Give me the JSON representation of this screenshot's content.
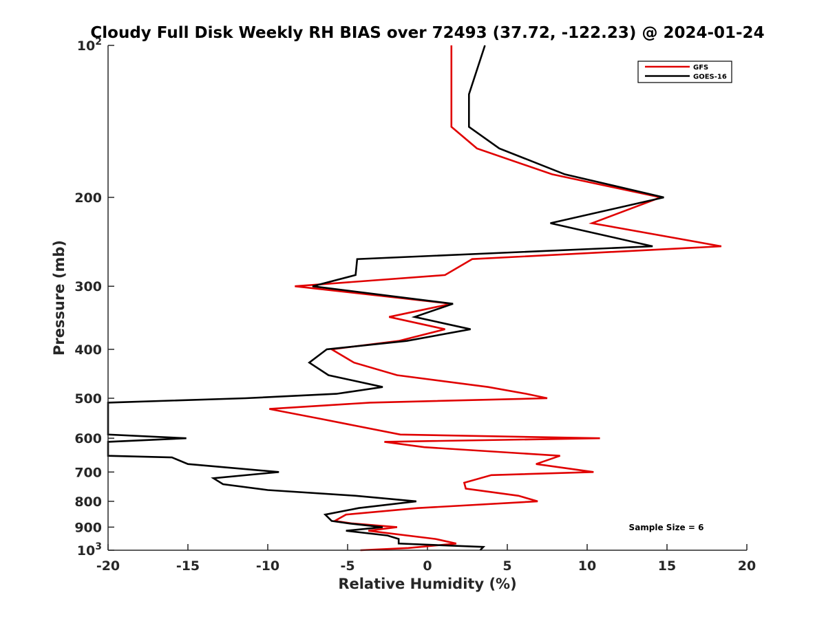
{
  "chart_data": {
    "type": "line",
    "title": "Cloudy Full Disk Weekly RH BIAS over 72493 (37.72, -122.23) @ 2024-01-24",
    "xlabel": "Relative Humidity (%)",
    "ylabel": "Pressure (mb)",
    "xlim": [
      -20,
      20
    ],
    "ylim": [
      100,
      1000
    ],
    "y_scale": "log",
    "y_reversed": true,
    "x_ticks": [
      -20,
      -15,
      -10,
      -5,
      0,
      5,
      10,
      15,
      20
    ],
    "x_tick_labels": [
      "-20",
      "-15",
      "-10",
      "-5",
      "0",
      "5",
      "10",
      "15",
      "20"
    ],
    "y_ticks": [
      100,
      200,
      300,
      400,
      500,
      600,
      700,
      800,
      900,
      1000
    ],
    "y_tick_labels": [
      {
        "base": "10",
        "exp": "2"
      },
      {
        "base": "200",
        "exp": ""
      },
      {
        "base": "300",
        "exp": ""
      },
      {
        "base": "400",
        "exp": ""
      },
      {
        "base": "500",
        "exp": ""
      },
      {
        "base": "600",
        "exp": ""
      },
      {
        "base": "700",
        "exp": ""
      },
      {
        "base": "800",
        "exp": ""
      },
      {
        "base": "900",
        "exp": ""
      },
      {
        "base": "10",
        "exp": "3"
      }
    ],
    "grid": false,
    "legend_position": "top-right",
    "annotation": "Sample Size = 6",
    "series": [
      {
        "name": "GFS",
        "color": "#e00000",
        "points": [
          {
            "x": 1.5,
            "y": 100
          },
          {
            "x": 1.5,
            "y": 125
          },
          {
            "x": 1.5,
            "y": 145
          },
          {
            "x": 3.1,
            "y": 160
          },
          {
            "x": 7.8,
            "y": 180
          },
          {
            "x": 14.6,
            "y": 200
          },
          {
            "x": 10.3,
            "y": 225
          },
          {
            "x": 18.4,
            "y": 250
          },
          {
            "x": 2.8,
            "y": 265
          },
          {
            "x": 1.1,
            "y": 285
          },
          {
            "x": -8.3,
            "y": 300
          },
          {
            "x": 1.5,
            "y": 325
          },
          {
            "x": -2.4,
            "y": 345
          },
          {
            "x": 1.1,
            "y": 365
          },
          {
            "x": -1.8,
            "y": 385
          },
          {
            "x": -6.0,
            "y": 400
          },
          {
            "x": -4.6,
            "y": 425
          },
          {
            "x": -1.9,
            "y": 450
          },
          {
            "x": 3.8,
            "y": 475
          },
          {
            "x": 6.2,
            "y": 490
          },
          {
            "x": 7.5,
            "y": 500
          },
          {
            "x": -3.6,
            "y": 510
          },
          {
            "x": -9.9,
            "y": 525
          },
          {
            "x": -6.6,
            "y": 550
          },
          {
            "x": -1.7,
            "y": 590
          },
          {
            "x": 10.8,
            "y": 600
          },
          {
            "x": -2.7,
            "y": 610
          },
          {
            "x": -0.2,
            "y": 625
          },
          {
            "x": 8.3,
            "y": 650
          },
          {
            "x": 6.8,
            "y": 675
          },
          {
            "x": 10.4,
            "y": 700
          },
          {
            "x": 4.0,
            "y": 710
          },
          {
            "x": 2.3,
            "y": 735
          },
          {
            "x": 2.4,
            "y": 755
          },
          {
            "x": 5.7,
            "y": 780
          },
          {
            "x": 6.9,
            "y": 800
          },
          {
            "x": -0.6,
            "y": 825
          },
          {
            "x": -5.1,
            "y": 850
          },
          {
            "x": -5.8,
            "y": 875
          },
          {
            "x": -4.7,
            "y": 885
          },
          {
            "x": -1.9,
            "y": 900
          },
          {
            "x": -3.7,
            "y": 915
          },
          {
            "x": 0.5,
            "y": 950
          },
          {
            "x": 1.8,
            "y": 970
          },
          {
            "x": -1.2,
            "y": 990
          },
          {
            "x": -4.2,
            "y": 1000
          }
        ]
      },
      {
        "name": "GOES-16",
        "color": "#000000",
        "points": [
          {
            "x": 3.6,
            "y": 100
          },
          {
            "x": 2.6,
            "y": 125
          },
          {
            "x": 2.6,
            "y": 145
          },
          {
            "x": 4.5,
            "y": 160
          },
          {
            "x": 8.6,
            "y": 180
          },
          {
            "x": 14.8,
            "y": 200
          },
          {
            "x": 7.7,
            "y": 225
          },
          {
            "x": 14.1,
            "y": 250
          },
          {
            "x": -4.4,
            "y": 265
          },
          {
            "x": -4.5,
            "y": 285
          },
          {
            "x": -7.2,
            "y": 300
          },
          {
            "x": 1.6,
            "y": 325
          },
          {
            "x": -0.8,
            "y": 345
          },
          {
            "x": 2.7,
            "y": 365
          },
          {
            "x": -1.3,
            "y": 385
          },
          {
            "x": -6.3,
            "y": 400
          },
          {
            "x": -7.4,
            "y": 425
          },
          {
            "x": -6.2,
            "y": 450
          },
          {
            "x": -2.8,
            "y": 475
          },
          {
            "x": -5.7,
            "y": 490
          },
          {
            "x": -11.4,
            "y": 500
          },
          {
            "x": -20,
            "y": 510
          },
          {
            "x": -20,
            "y": 590
          },
          {
            "x": -15.1,
            "y": 600
          },
          {
            "x": -20,
            "y": 610
          },
          {
            "x": -20,
            "y": 650
          },
          {
            "x": -16.0,
            "y": 655
          },
          {
            "x": -15.0,
            "y": 675
          },
          {
            "x": -9.3,
            "y": 700
          },
          {
            "x": -13.4,
            "y": 720
          },
          {
            "x": -12.8,
            "y": 740
          },
          {
            "x": -10.0,
            "y": 760
          },
          {
            "x": -4.5,
            "y": 780
          },
          {
            "x": -0.7,
            "y": 800
          },
          {
            "x": -4.3,
            "y": 825
          },
          {
            "x": -6.4,
            "y": 850
          },
          {
            "x": -6.0,
            "y": 875
          },
          {
            "x": -4.9,
            "y": 885
          },
          {
            "x": -2.8,
            "y": 900
          },
          {
            "x": -5.1,
            "y": 915
          },
          {
            "x": -2.5,
            "y": 935
          },
          {
            "x": -1.8,
            "y": 950
          },
          {
            "x": -1.8,
            "y": 970
          },
          {
            "x": 3.5,
            "y": 985
          },
          {
            "x": 3.3,
            "y": 1000
          }
        ]
      }
    ]
  }
}
